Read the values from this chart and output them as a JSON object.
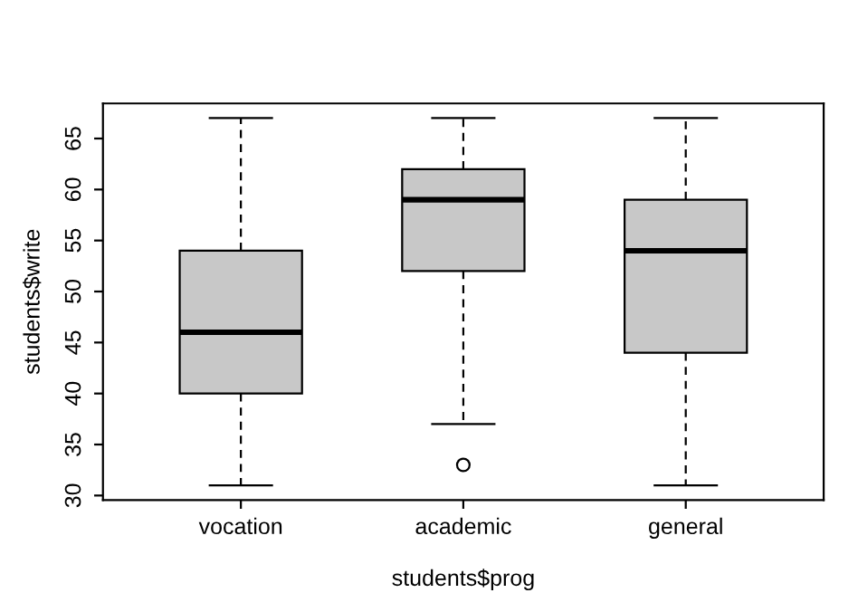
{
  "chart_data": {
    "type": "box",
    "xlabel": "students$prog",
    "ylabel": "students$write",
    "categories": [
      "vocation",
      "academic",
      "general"
    ],
    "boxes": [
      {
        "low": 31,
        "q1": 40,
        "median": 46,
        "q3": 54,
        "high": 67
      },
      {
        "low": 37,
        "q1": 52,
        "median": 59,
        "q3": 62,
        "high": 67,
        "outliers": [
          33
        ]
      },
      {
        "low": 31,
        "q1": 44,
        "median": 54,
        "q3": 59,
        "high": 67
      }
    ],
    "color": "#c8c8c8",
    "ylim": [
      29.56,
      68.44
    ],
    "yticks": [
      30,
      35,
      40,
      45,
      50,
      55,
      60,
      65
    ],
    "grid": false
  }
}
